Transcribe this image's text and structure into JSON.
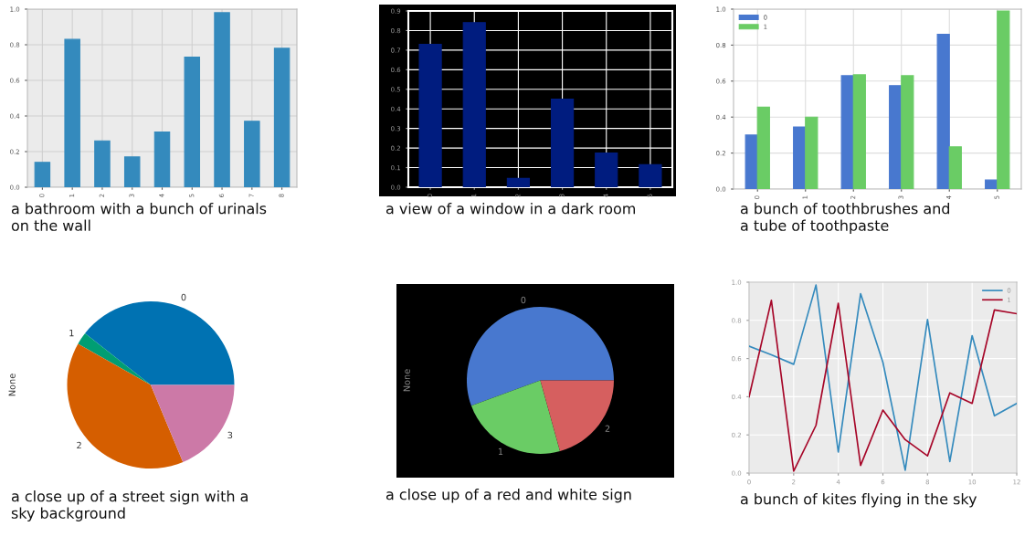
{
  "chart_data": [
    {
      "type": "bar",
      "categories": [
        "0",
        "1",
        "2",
        "3",
        "4",
        "5",
        "6",
        "7",
        "8"
      ],
      "series": [
        {
          "color": "#348abd",
          "values": [
            0.14,
            0.83,
            0.26,
            0.17,
            0.31,
            0.73,
            0.98,
            0.37,
            0.78
          ]
        }
      ],
      "ylim": [
        0,
        1
      ],
      "yticks": [
        {
          "value": 0,
          "label": "0.0"
        },
        {
          "value": 0.2,
          "label": "0.2"
        },
        {
          "value": 0.4,
          "label": "0.4"
        },
        {
          "value": 0.6,
          "label": "0.6"
        },
        {
          "value": 0.8,
          "label": "0.8"
        },
        {
          "value": 1,
          "label": "1.0"
        }
      ],
      "grid": true,
      "annotations": [
        "a bathroom with a bunch of urinals\non the wall"
      ]
    },
    {
      "type": "bar",
      "categories": [
        "0",
        "1",
        "2",
        "3",
        "4",
        "5"
      ],
      "series": [
        {
          "color": "#001c7f",
          "values": [
            0.73,
            0.84,
            0.045,
            0.45,
            0.175,
            0.115
          ]
        }
      ],
      "ylim": [
        0,
        0.9
      ],
      "yticks": [
        {
          "value": 0,
          "label": "0.0"
        },
        {
          "value": 0.1,
          "label": "0.1"
        },
        {
          "value": 0.2,
          "label": "0.2"
        },
        {
          "value": 0.3,
          "label": "0.3"
        },
        {
          "value": 0.4,
          "label": "0.4"
        },
        {
          "value": 0.5,
          "label": "0.5"
        },
        {
          "value": 0.6,
          "label": "0.6"
        },
        {
          "value": 0.7,
          "label": "0.7"
        },
        {
          "value": 0.8,
          "label": "0.8"
        },
        {
          "value": 0.9,
          "label": "0.9"
        }
      ],
      "grid": true,
      "annotations": [
        "a view of a window in a dark room"
      ]
    },
    {
      "type": "bar",
      "categories": [
        "0",
        "1",
        "2",
        "3",
        "4",
        "5"
      ],
      "series": [
        {
          "name": "0",
          "color": "#4878cf",
          "values": [
            0.3,
            0.345,
            0.63,
            0.575,
            0.86,
            0.05
          ]
        },
        {
          "name": "1",
          "color": "#6acc65",
          "values": [
            0.455,
            0.4,
            0.635,
            0.63,
            0.235,
            0.99
          ]
        }
      ],
      "ylim": [
        0,
        1
      ],
      "yticks": [
        {
          "value": 0,
          "label": "0.0"
        },
        {
          "value": 0.2,
          "label": "0.2"
        },
        {
          "value": 0.4,
          "label": "0.4"
        },
        {
          "value": 0.6,
          "label": "0.6"
        },
        {
          "value": 0.8,
          "label": "0.8"
        },
        {
          "value": 1,
          "label": "1.0"
        }
      ],
      "grid": true,
      "legend": "top left",
      "annotations": [
        "a bunch of toothbrushes and\na tube of toothpaste"
      ]
    },
    {
      "type": "pie",
      "categories": [
        "0",
        "1",
        "2",
        "3"
      ],
      "values": [
        39.4,
        2.4,
        39.5,
        18.7
      ],
      "colors": [
        "#0072b2",
        "#009e73",
        "#d55e00",
        "#cc79a7"
      ],
      "ylabel": "None",
      "annotations": [
        "a close up of a street sign with a\nsky background"
      ]
    },
    {
      "type": "pie",
      "categories": [
        "0",
        "1",
        "2"
      ],
      "values": [
        55.6,
        23.7,
        20.7
      ],
      "colors": [
        "#4878cf",
        "#6acc65",
        "#d65f5f"
      ],
      "ylabel": "None",
      "annotations": [
        "a close up of a red and white sign"
      ]
    },
    {
      "type": "line",
      "x": [
        0,
        1,
        2,
        3,
        4,
        5,
        6,
        7,
        8,
        9,
        10,
        11,
        12
      ],
      "series": [
        {
          "name": "0",
          "color": "#348abd",
          "values": [
            0.665,
            0.62,
            0.57,
            0.985,
            0.11,
            0.94,
            0.58,
            0.015,
            0.805,
            0.06,
            0.72,
            0.3,
            0.365
          ]
        },
        {
          "name": "1",
          "color": "#a60628",
          "values": [
            0.4,
            0.905,
            0.01,
            0.25,
            0.89,
            0.04,
            0.33,
            0.175,
            0.09,
            0.42,
            0.365,
            0.855,
            0.835
          ]
        }
      ],
      "xlim": [
        0,
        12
      ],
      "xticks": [
        0,
        2,
        4,
        6,
        8,
        10,
        12
      ],
      "ylim": [
        0,
        1
      ],
      "yticks": [
        {
          "value": 0,
          "label": "0.0"
        },
        {
          "value": 0.2,
          "label": "0.2"
        },
        {
          "value": 0.4,
          "label": "0.4"
        },
        {
          "value": 0.6,
          "label": "0.6"
        },
        {
          "value": 0.8,
          "label": "0.8"
        },
        {
          "value": 1,
          "label": "1.0"
        }
      ],
      "grid": true,
      "legend": "top right",
      "annotations": [
        "a bunch of kites flying in the sky"
      ]
    }
  ]
}
